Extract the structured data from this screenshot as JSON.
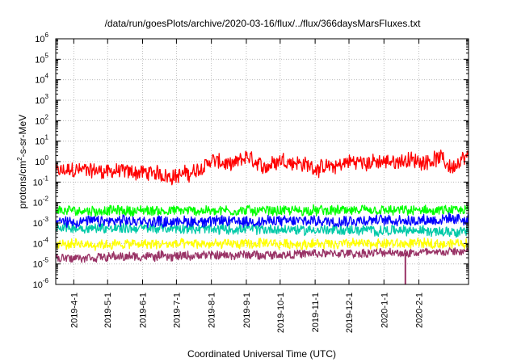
{
  "chart_data": {
    "type": "line",
    "title": "/data/run/goesPlots/archive/2020-03-16/flux/../flux/366daysMarsFluxes.txt",
    "xlabel": "Coordinated Universal Time (UTC)",
    "ylabel_parts": {
      "prefix": "protons/cm",
      "exponent": "2",
      "suffix": "-s-sr-MeV"
    },
    "x_range": [
      "2019-03-16",
      "2020-03-16"
    ],
    "x_ticks": [
      "2019-4-1",
      "2019-5-1",
      "2019-6-1",
      "2019-7-1",
      "2019-8-1",
      "2019-9-1",
      "2019-10-1",
      "2019-11-1",
      "2019-12-1",
      "2020-1-1",
      "2020-2-1"
    ],
    "y_scale": "log",
    "ylim": [
      1e-06,
      1000000.0
    ],
    "y_ticks": [
      {
        "base": "10",
        "exp": "-6",
        "value": 1e-06
      },
      {
        "base": "10",
        "exp": "-5",
        "value": 1e-05
      },
      {
        "base": "10",
        "exp": "-4",
        "value": 0.0001
      },
      {
        "base": "10",
        "exp": "-3",
        "value": 0.001
      },
      {
        "base": "10",
        "exp": "-2",
        "value": 0.01
      },
      {
        "base": "10",
        "exp": "-1",
        "value": 0.1
      },
      {
        "base": "10",
        "exp": "0",
        "value": 1
      },
      {
        "base": "10",
        "exp": "1",
        "value": 10
      },
      {
        "base": "10",
        "exp": "2",
        "value": 100
      },
      {
        "base": "10",
        "exp": "3",
        "value": 1000
      },
      {
        "base": "10",
        "exp": "4",
        "value": 10000
      },
      {
        "base": "10",
        "exp": "5",
        "value": 100000
      },
      {
        "base": "10",
        "exp": "6",
        "value": 1000000
      }
    ],
    "grid": true,
    "legend": "none",
    "series": [
      {
        "color": "#ff0000",
        "x": [
          "2019-03-16",
          "2019-04-01",
          "2019-05-01",
          "2019-06-01",
          "2019-07-01",
          "2019-07-20",
          "2019-08-01",
          "2019-08-20",
          "2019-09-01",
          "2019-09-15",
          "2019-10-01",
          "2019-10-20",
          "2019-11-01",
          "2019-11-15",
          "2019-12-01",
          "2020-01-01",
          "2020-01-20",
          "2020-02-01",
          "2020-02-20",
          "2020-03-01",
          "2020-03-16"
        ],
        "y": [
          0.3,
          0.4,
          0.35,
          0.3,
          0.2,
          0.35,
          1.2,
          0.6,
          1.8,
          0.5,
          1.3,
          0.8,
          0.5,
          0.5,
          1.0,
          0.9,
          1.2,
          1.0,
          1.5,
          0.5,
          1.8
        ],
        "spread_decades": 0.7
      },
      {
        "color": "#00ff00",
        "x": [
          "2019-03-16",
          "2020-03-16"
        ],
        "y": [
          0.004,
          0.004
        ],
        "spread_decades": 0.45
      },
      {
        "color": "#ffffff",
        "x": [
          "2019-03-16",
          "2020-03-16"
        ],
        "y": [
          0.0015,
          0.0015
        ],
        "spread_decades": 0.3
      },
      {
        "color": "#00c9a8",
        "x": [
          "2019-03-16",
          "2020-03-16"
        ],
        "y": [
          0.0006,
          0.0004
        ],
        "spread_decades": 0.45
      },
      {
        "color": "#0000ff",
        "x": [
          "2019-03-16",
          "2019-09-01",
          "2020-03-16"
        ],
        "y": [
          0.0012,
          0.0012,
          0.0015
        ],
        "spread_decades": 0.5
      },
      {
        "color": "#ffff00",
        "x": [
          "2019-03-16",
          "2020-03-16"
        ],
        "y": [
          9e-05,
          0.0001
        ],
        "spread_decades": 0.45
      },
      {
        "color": "#993366",
        "x": [
          "2019-03-16",
          "2020-03-16"
        ],
        "y": [
          2e-05,
          4e-05
        ],
        "spread_decades": 0.4,
        "dip": {
          "x": "2020-01-20",
          "y": 1e-06
        }
      }
    ]
  }
}
